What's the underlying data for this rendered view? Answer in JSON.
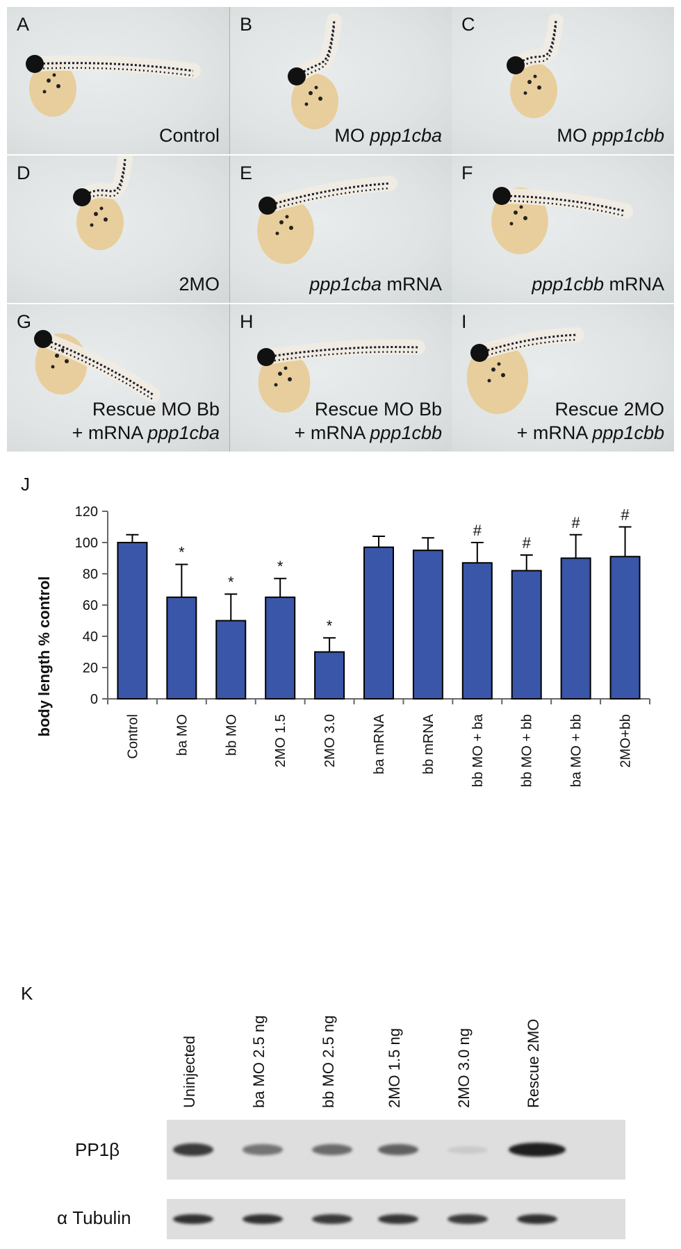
{
  "panels": [
    {
      "letter": "A",
      "caption": [
        [
          "Control",
          ""
        ]
      ],
      "caption2": []
    },
    {
      "letter": "B",
      "caption": [
        [
          "MO ",
          ""
        ],
        [
          "ppp1cba",
          "i"
        ]
      ],
      "caption2": []
    },
    {
      "letter": "C",
      "caption": [
        [
          "MO ",
          ""
        ],
        [
          "ppp1cbb",
          "i"
        ]
      ],
      "caption2": []
    },
    {
      "letter": "D",
      "caption": [
        [
          "2MO",
          ""
        ]
      ],
      "caption2": []
    },
    {
      "letter": "E",
      "caption": [
        [
          "ppp1cba",
          "i"
        ],
        [
          " mRNA",
          ""
        ]
      ],
      "caption2": []
    },
    {
      "letter": "F",
      "caption": [
        [
          "ppp1cbb",
          "i"
        ],
        [
          " mRNA",
          ""
        ]
      ],
      "caption2": []
    },
    {
      "letter": "G",
      "caption": [
        [
          "Rescue MO Bb",
          ""
        ]
      ],
      "caption2": [
        [
          "+ mRNA ",
          ""
        ],
        [
          "ppp1cba",
          "i"
        ]
      ]
    },
    {
      "letter": "H",
      "caption": [
        [
          "Rescue MO Bb",
          ""
        ]
      ],
      "caption2": [
        [
          "+ mRNA ",
          ""
        ],
        [
          "ppp1cbb",
          "i"
        ]
      ]
    },
    {
      "letter": "I",
      "caption": [
        [
          "Rescue 2MO",
          ""
        ]
      ],
      "caption2": [
        [
          "+ mRNA ",
          ""
        ],
        [
          "ppp1cbb",
          "i"
        ]
      ]
    }
  ],
  "panel_j_letter": "J",
  "chart_data": {
    "type": "bar",
    "ylabel": "body length % control",
    "ylim": [
      0,
      120
    ],
    "yticks": [
      0,
      20,
      40,
      60,
      80,
      100,
      120
    ],
    "categories": [
      "Control",
      "ba MO",
      "bb MO",
      "2MO 1.5",
      "2MO 3.0",
      "ba mRNA",
      "bb mRNA",
      "bb MO + ba",
      "bb MO + bb",
      "ba MO + bb",
      "2MO+bb"
    ],
    "values": [
      100,
      65,
      50,
      65,
      30,
      97,
      95,
      87,
      82,
      90,
      91
    ],
    "errors": [
      5,
      21,
      17,
      12,
      9,
      7,
      8,
      13,
      10,
      15,
      19
    ],
    "markers": [
      "",
      "*",
      "*",
      "*",
      "*",
      "",
      "",
      "#",
      "#",
      "#",
      "#"
    ],
    "bar_color": "#3a56a8"
  },
  "panel_k_letter": "K",
  "blot": {
    "lanes": [
      "Uninjected",
      "ba MO 2.5 ng",
      "bb MO 2.5 ng",
      "2MO 1.5 ng",
      "2MO 3.0 ng",
      "Rescue 2MO"
    ],
    "rows": [
      {
        "label": "PP1β",
        "intensity": [
          0.85,
          0.55,
          0.6,
          0.65,
          0.1,
          1.0
        ]
      },
      {
        "label": "α Tubulin",
        "intensity": [
          0.9,
          0.9,
          0.85,
          0.88,
          0.85,
          0.9
        ]
      }
    ]
  }
}
